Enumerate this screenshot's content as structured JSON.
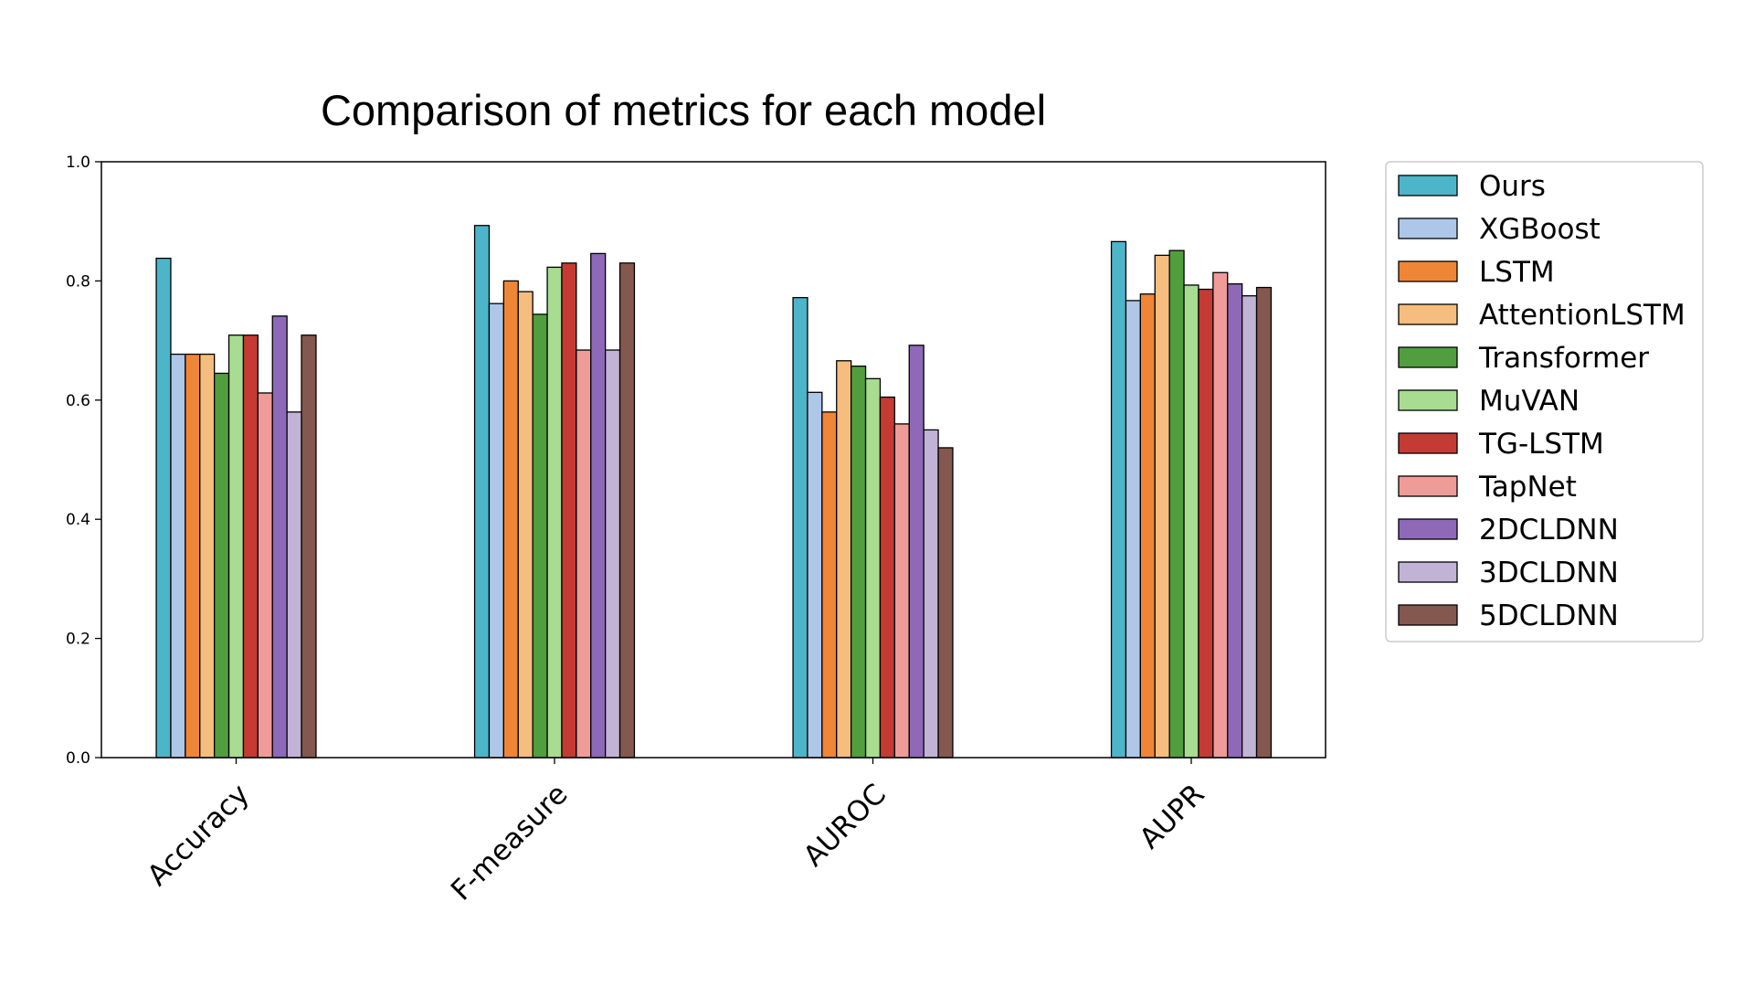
{
  "chart_data": {
    "type": "bar",
    "title": "Comparison of metrics for each model",
    "xlabel": "",
    "ylabel": "",
    "ylim": [
      0.0,
      1.0
    ],
    "yticks": [
      "0.0",
      "0.2",
      "0.4",
      "0.6",
      "0.8",
      "1.0"
    ],
    "categories": [
      "Accuracy",
      "F-measure",
      "AUROC",
      "AUPR"
    ],
    "grid": false,
    "legend_position": "outside-right",
    "series": [
      {
        "name": "Ours",
        "color": "#4db5c9",
        "values": [
          0.838,
          0.893,
          0.772,
          0.866
        ]
      },
      {
        "name": "XGBoost",
        "color": "#aec7e8",
        "values": [
          0.677,
          0.762,
          0.613,
          0.767
        ]
      },
      {
        "name": "LSTM",
        "color": "#ef8636",
        "values": [
          0.677,
          0.8,
          0.58,
          0.778
        ]
      },
      {
        "name": "AttentionLSTM",
        "color": "#f5bd7e",
        "values": [
          0.677,
          0.782,
          0.666,
          0.843
        ]
      },
      {
        "name": "Transformer",
        "color": "#519e3e",
        "values": [
          0.645,
          0.744,
          0.657,
          0.851
        ]
      },
      {
        "name": "MuVAN",
        "color": "#a7dc91",
        "values": [
          0.709,
          0.823,
          0.636,
          0.793
        ]
      },
      {
        "name": "TG-LSTM",
        "color": "#c53a32",
        "values": [
          0.709,
          0.83,
          0.605,
          0.786
        ]
      },
      {
        "name": "TapNet",
        "color": "#ef9b98",
        "values": [
          0.612,
          0.684,
          0.56,
          0.814
        ]
      },
      {
        "name": "2DCLDNN",
        "color": "#8d69b8",
        "values": [
          0.741,
          0.846,
          0.692,
          0.795
        ]
      },
      {
        "name": "3DCLDNN",
        "color": "#c1b3d6",
        "values": [
          0.58,
          0.684,
          0.55,
          0.775
        ]
      },
      {
        "name": "5DCLDNN",
        "color": "#84584e",
        "values": [
          0.709,
          0.83,
          0.52,
          0.789
        ]
      }
    ]
  }
}
